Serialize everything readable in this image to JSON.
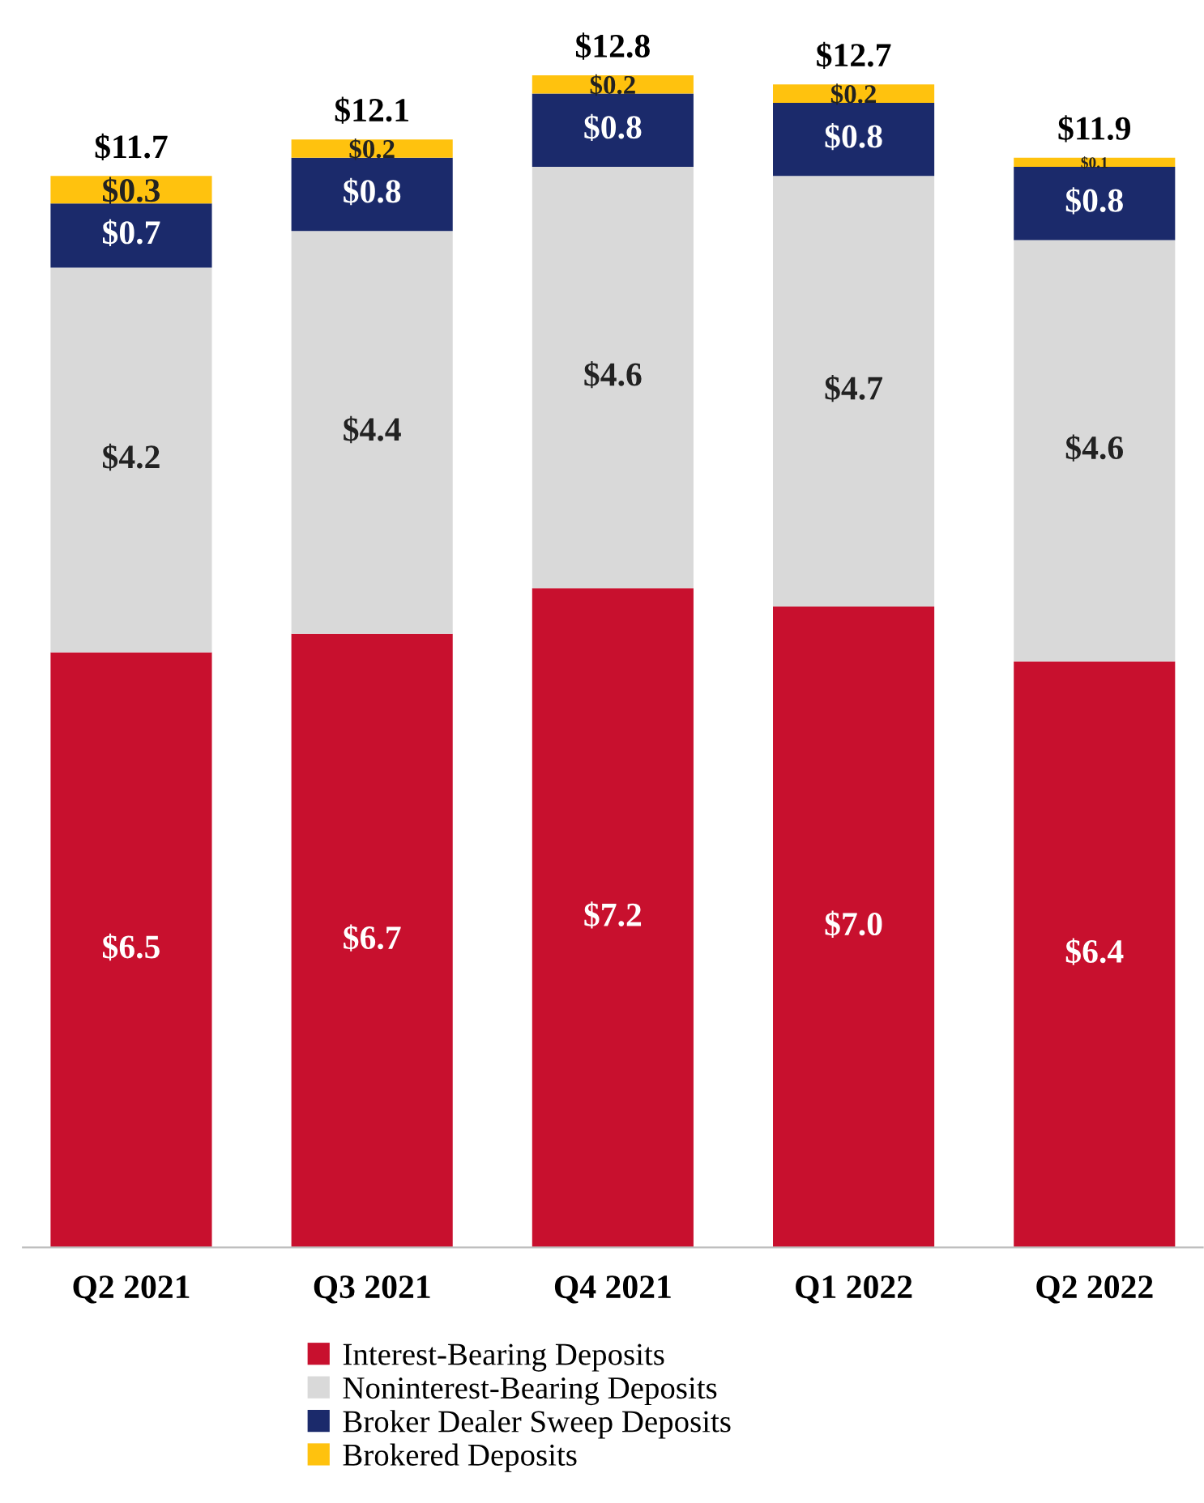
{
  "chart_data": {
    "type": "bar",
    "stacked": true,
    "categories": [
      "Q2 2021",
      "Q3 2021",
      "Q4 2021",
      "Q1 2022",
      "Q2 2022"
    ],
    "series": [
      {
        "name": "Interest-Bearing Deposits",
        "color": "#c8102e",
        "values": [
          6.5,
          6.7,
          7.2,
          7.0,
          6.4
        ],
        "value_labels": [
          "$6.5",
          "$6.7",
          "$7.2",
          "$7.0",
          "$6.4"
        ]
      },
      {
        "name": "Noninterest-Bearing Deposits",
        "color": "#d9d9d9",
        "values": [
          4.2,
          4.4,
          4.6,
          4.7,
          4.6
        ],
        "value_labels": [
          "$4.2",
          "$4.4",
          "$4.6",
          "$4.7",
          "$4.6"
        ]
      },
      {
        "name": "Broker Dealer Sweep Deposits",
        "color": "#1b2a6b",
        "values": [
          0.7,
          0.8,
          0.8,
          0.8,
          0.8
        ],
        "value_labels": [
          "$0.7",
          "$0.8",
          "$0.8",
          "$0.8",
          "$0.8"
        ]
      },
      {
        "name": "Brokered Deposits",
        "color": "#ffc20e",
        "values": [
          0.3,
          0.2,
          0.2,
          0.2,
          0.1
        ],
        "value_labels": [
          "$0.3",
          "$0.2",
          "$0.2",
          "$0.2",
          "$0.1"
        ]
      }
    ],
    "totals": [
      "$11.7",
      "$12.1",
      "$12.8",
      "$12.7",
      "$11.9"
    ],
    "legend": "bottom"
  }
}
